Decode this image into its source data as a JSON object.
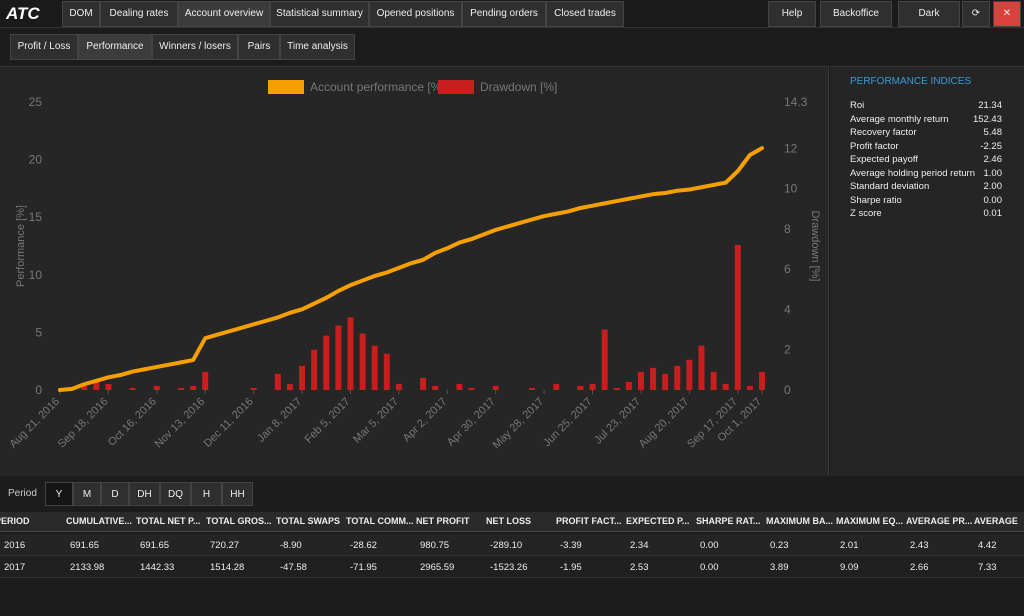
{
  "nav": {
    "logo": "ATC",
    "tabs": [
      "DOM",
      "Dealing rates",
      "Account overview",
      "Statistical summary",
      "Opened positions",
      "Pending orders",
      "Closed trades"
    ],
    "active": 2,
    "right": [
      "Help",
      "Backoffice",
      "Dark"
    ]
  },
  "subtabs": {
    "items": [
      "Profit / Loss",
      "Performance",
      "Winners / losers",
      "Pairs",
      "Time analysis"
    ],
    "active": 1
  },
  "chart_data": {
    "type": "combo",
    "x": [
      "2016-08-21",
      "2016-08-28",
      "2016-09-04",
      "2016-09-11",
      "2016-09-18",
      "2016-09-25",
      "2016-10-02",
      "2016-10-09",
      "2016-10-16",
      "2016-10-23",
      "2016-10-30",
      "2016-11-06",
      "2016-11-13",
      "2016-11-20",
      "2016-11-27",
      "2016-12-04",
      "2016-12-11",
      "2016-12-18",
      "2016-12-25",
      "2017-01-01",
      "2017-01-08",
      "2017-01-15",
      "2017-01-22",
      "2017-01-29",
      "2017-02-05",
      "2017-02-12",
      "2017-02-19",
      "2017-02-26",
      "2017-03-05",
      "2017-03-12",
      "2017-03-19",
      "2017-03-26",
      "2017-04-02",
      "2017-04-09",
      "2017-04-16",
      "2017-04-23",
      "2017-04-30",
      "2017-05-07",
      "2017-05-14",
      "2017-05-21",
      "2017-05-28",
      "2017-06-04",
      "2017-06-11",
      "2017-06-18",
      "2017-06-25",
      "2017-07-02",
      "2017-07-09",
      "2017-07-16",
      "2017-07-23",
      "2017-07-30",
      "2017-08-06",
      "2017-08-13",
      "2017-08-20",
      "2017-08-27",
      "2017-09-03",
      "2017-09-10",
      "2017-09-17",
      "2017-09-24",
      "2017-10-01"
    ],
    "series": [
      {
        "name": "Account performance [%]",
        "color": "#f5a000",
        "type": "line",
        "values": [
          0,
          0.1,
          0.5,
          0.8,
          1.1,
          1.3,
          1.6,
          1.8,
          2.0,
          2.2,
          2.4,
          2.6,
          4.5,
          4.8,
          5.1,
          5.4,
          5.7,
          6.0,
          6.3,
          6.7,
          7.0,
          7.5,
          8.0,
          8.6,
          9.1,
          9.5,
          9.9,
          10.2,
          10.6,
          11.0,
          11.3,
          11.9,
          12.3,
          12.8,
          13.1,
          13.5,
          13.9,
          14.2,
          14.5,
          14.8,
          15.1,
          15.3,
          15.5,
          15.8,
          16.0,
          16.2,
          16.4,
          16.6,
          16.8,
          17.0,
          17.1,
          17.3,
          17.4,
          17.6,
          17.8,
          18.0,
          19.0,
          20.4,
          21.0
        ]
      },
      {
        "name": "Drawdown [%]",
        "color": "#c81e1e",
        "type": "bar",
        "axis": "y2",
        "values": [
          0,
          0,
          0.2,
          0.4,
          0.3,
          0,
          0.1,
          0,
          0.2,
          0,
          0.1,
          0.2,
          0.9,
          0,
          0,
          0,
          0.1,
          0,
          0.8,
          0.3,
          1.2,
          2.0,
          2.7,
          3.2,
          3.6,
          2.8,
          2.2,
          1.8,
          0.3,
          0,
          0.6,
          0.2,
          0,
          0.3,
          0.1,
          0,
          0.2,
          0,
          0,
          0.1,
          0,
          0.3,
          0,
          0.2,
          0.3,
          3.0,
          0.1,
          0.4,
          0.9,
          1.1,
          0.8,
          1.2,
          1.5,
          2.2,
          0.9,
          0.3,
          7.2,
          0.2,
          0.9
        ]
      }
    ],
    "xlim": [
      "2016-08-21",
      "2017-10-01"
    ],
    "xticks": [
      {
        "value": "2016-08-21",
        "label": "Aug 21, 2016"
      },
      {
        "value": "2016-09-18",
        "label": "Sep 18, 2016"
      },
      {
        "value": "2016-10-16",
        "label": "Oct 16, 2016"
      },
      {
        "value": "2016-11-13",
        "label": "Nov 13, 2016"
      },
      {
        "value": "2016-12-11",
        "label": "Dec 11, 2016"
      },
      {
        "value": "2017-01-08",
        "label": "Jan 8, 2017"
      },
      {
        "value": "2017-02-05",
        "label": "Feb 5, 2017"
      },
      {
        "value": "2017-03-05",
        "label": "Mar 5, 2017"
      },
      {
        "value": "2017-04-02",
        "label": "Apr 2, 2017"
      },
      {
        "value": "2017-04-30",
        "label": "Apr 30, 2017"
      },
      {
        "value": "2017-05-28",
        "label": "May 28, 2017"
      },
      {
        "value": "2017-06-25",
        "label": "Jun 25, 2017"
      },
      {
        "value": "2017-07-23",
        "label": "Jul 23, 2017"
      },
      {
        "value": "2017-08-20",
        "label": "Aug 20, 2017"
      },
      {
        "value": "2017-09-17",
        "label": "Sep 17, 2017"
      },
      {
        "value": "2017-10-01",
        "label": "Oct 1, 2017"
      }
    ],
    "ylim": [
      0,
      25
    ],
    "yticks": [
      0,
      5,
      10,
      15,
      20,
      25
    ],
    "y2lim": [
      0,
      14.3
    ],
    "y2ticks": [
      0,
      2,
      4,
      6,
      8,
      10,
      12,
      14.3
    ],
    "ylabel": "Performance [%]",
    "y2label": "Drawdown [%]",
    "legend": "top"
  },
  "indices": {
    "title": "PERFORMANCE INDICES",
    "items": [
      [
        "Roi",
        "21.34"
      ],
      [
        "Average monthly return",
        "152.43"
      ],
      [
        "Recovery factor",
        "5.48"
      ],
      [
        "Profit factor",
        "-2.25"
      ],
      [
        "Expected payoff",
        "2.46"
      ],
      [
        "Average holding period return",
        "1.00"
      ],
      [
        "Standard deviation",
        "2.00"
      ],
      [
        "Sharpe ratio",
        "0.00"
      ],
      [
        "Z score",
        "0.01"
      ]
    ]
  },
  "period": {
    "label": "Period",
    "buttons": [
      "Y",
      "M",
      "D",
      "DH",
      "DQ",
      "H",
      "HH"
    ],
    "active": 0
  },
  "table": {
    "columns": [
      "PERIOD",
      "CUMULATIVE...",
      "TOTAL NET P...",
      "TOTAL GROS...",
      "TOTAL SWAPS",
      "TOTAL COMM...",
      "NET PROFIT",
      "NET LOSS",
      "PROFIT FACT...",
      "EXPECTED P...",
      "SHARPE RAT...",
      "MAXIMUM BA...",
      "MAXIMUM EQ...",
      "AVERAGE PR...",
      "AVERAGE"
    ],
    "rows": [
      [
        "2016",
        "691.65",
        "691.65",
        "720.27",
        "-8.90",
        "-28.62",
        "980.75",
        "-289.10",
        "-3.39",
        "2.34",
        "0.00",
        "0.23",
        "2.01",
        "2.43",
        "4.42"
      ],
      [
        "2017",
        "2133.98",
        "1442.33",
        "1514.28",
        "-47.58",
        "-71.95",
        "2965.59",
        "-1523.26",
        "-1.95",
        "2.53",
        "0.00",
        "3.89",
        "9.09",
        "2.66",
        "7.33"
      ]
    ]
  }
}
